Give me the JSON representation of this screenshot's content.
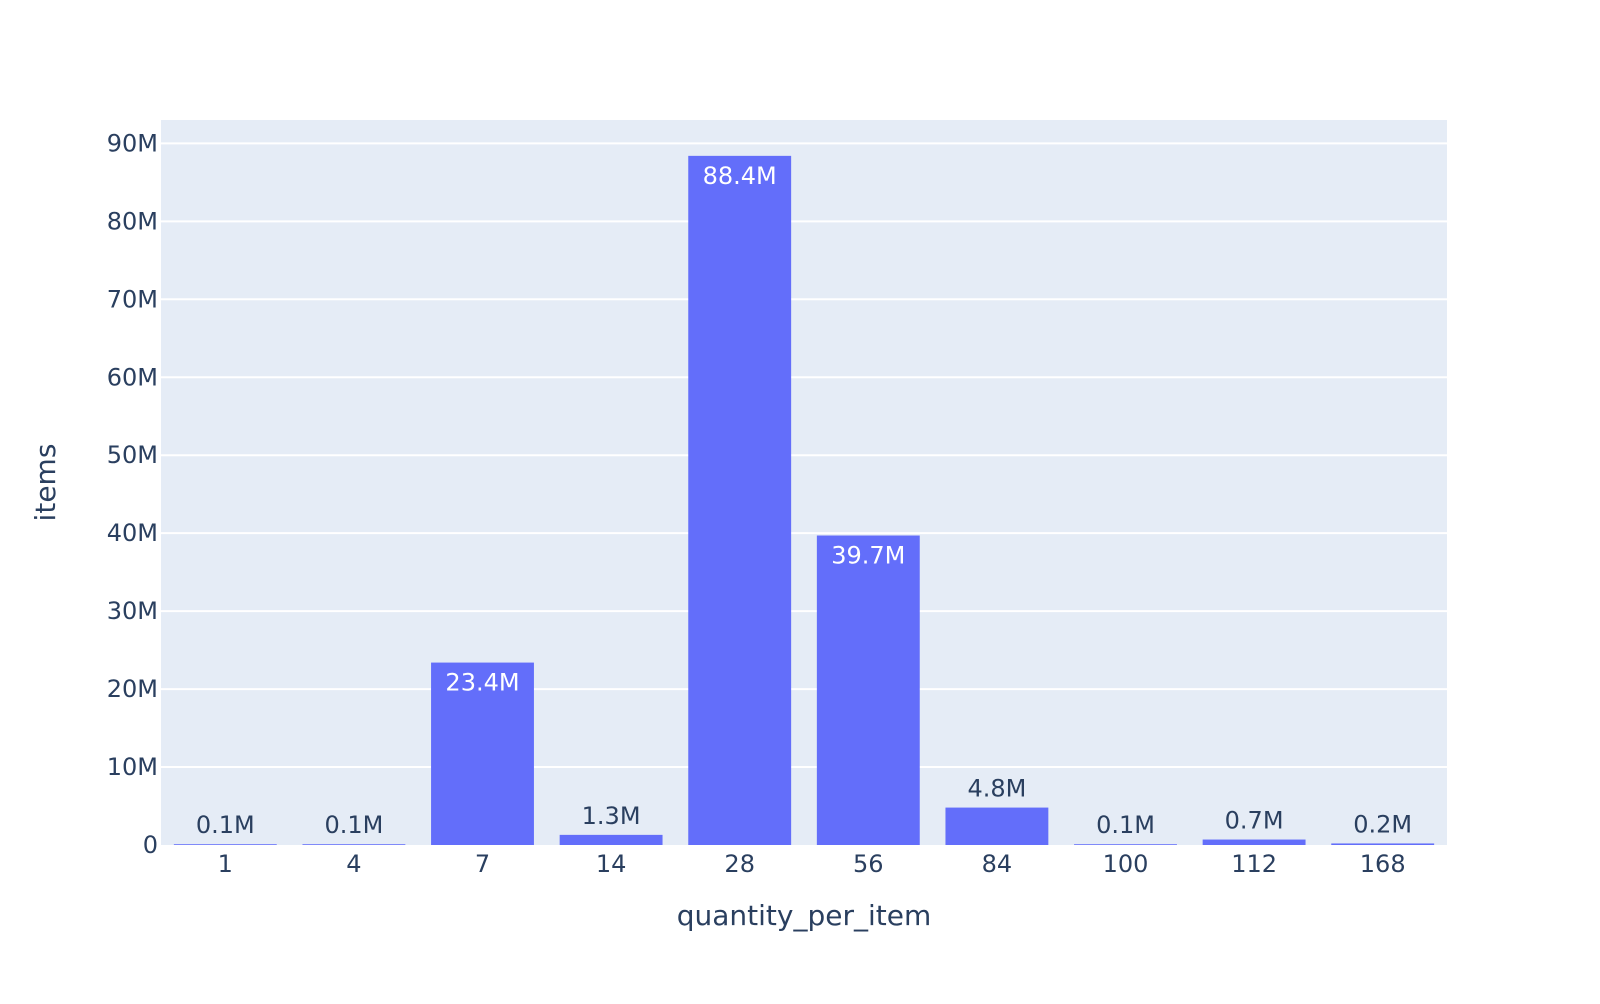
{
  "chart_data": {
    "type": "bar",
    "title": "",
    "xlabel": "quantity_per_item",
    "ylabel": "items",
    "categories": [
      "1",
      "4",
      "7",
      "14",
      "28",
      "56",
      "84",
      "100",
      "112",
      "168"
    ],
    "values": [
      100000,
      100000,
      23400000,
      1300000,
      88400000,
      39700000,
      4800000,
      100000,
      700000,
      200000
    ],
    "data_labels": [
      "0.1M",
      "0.1M",
      "23.4M",
      "1.3M",
      "88.4M",
      "39.7M",
      "4.8M",
      "0.1M",
      "0.7M",
      "0.2M"
    ],
    "ylim": [
      0,
      93000000
    ],
    "y_ticks": [
      0,
      10000000,
      20000000,
      30000000,
      40000000,
      50000000,
      60000000,
      70000000,
      80000000,
      90000000
    ],
    "y_tick_labels": [
      "0",
      "10M",
      "20M",
      "30M",
      "40M",
      "50M",
      "60M",
      "70M",
      "80M",
      "90M"
    ],
    "grid": true,
    "legend": "none",
    "colors": {
      "bar": "#636efa",
      "plot_background": "#e5ecf6",
      "grid": "#ffffff",
      "text": "#2a3f5f",
      "inside_label": "#ffffff"
    }
  }
}
